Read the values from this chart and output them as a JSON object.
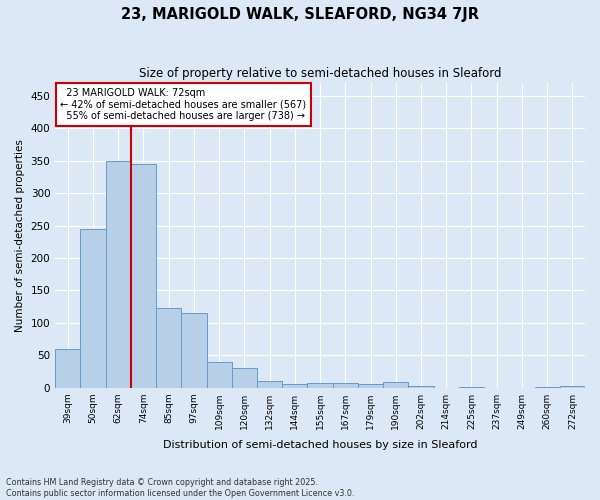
{
  "title1": "23, MARIGOLD WALK, SLEAFORD, NG34 7JR",
  "title2": "Size of property relative to semi-detached houses in Sleaford",
  "xlabel": "Distribution of semi-detached houses by size in Sleaford",
  "ylabel": "Number of semi-detached properties",
  "categories": [
    "39sqm",
    "50sqm",
    "62sqm",
    "74sqm",
    "85sqm",
    "97sqm",
    "109sqm",
    "120sqm",
    "132sqm",
    "144sqm",
    "155sqm",
    "167sqm",
    "179sqm",
    "190sqm",
    "202sqm",
    "214sqm",
    "225sqm",
    "237sqm",
    "249sqm",
    "260sqm",
    "272sqm"
  ],
  "values": [
    60,
    245,
    350,
    345,
    123,
    115,
    40,
    30,
    10,
    6,
    7,
    7,
    5,
    8,
    2,
    0,
    1,
    0,
    0,
    1,
    2
  ],
  "bar_color": "#b8cfe8",
  "bar_edge_color": "#6699cc",
  "vline_color": "#cc0000",
  "annotation_box_color": "#cc0000",
  "background_color": "#dce8f5",
  "fig_background_color": "#dce8f5",
  "property_label": "23 MARIGOLD WALK: 72sqm",
  "pct_smaller": 42,
  "pct_smaller_count": 567,
  "pct_larger": 55,
  "pct_larger_count": 738,
  "ylim": [
    0,
    470
  ],
  "yticks": [
    0,
    50,
    100,
    150,
    200,
    250,
    300,
    350,
    400,
    450
  ],
  "footer1": "Contains HM Land Registry data © Crown copyright and database right 2025.",
  "footer2": "Contains public sector information licensed under the Open Government Licence v3.0."
}
